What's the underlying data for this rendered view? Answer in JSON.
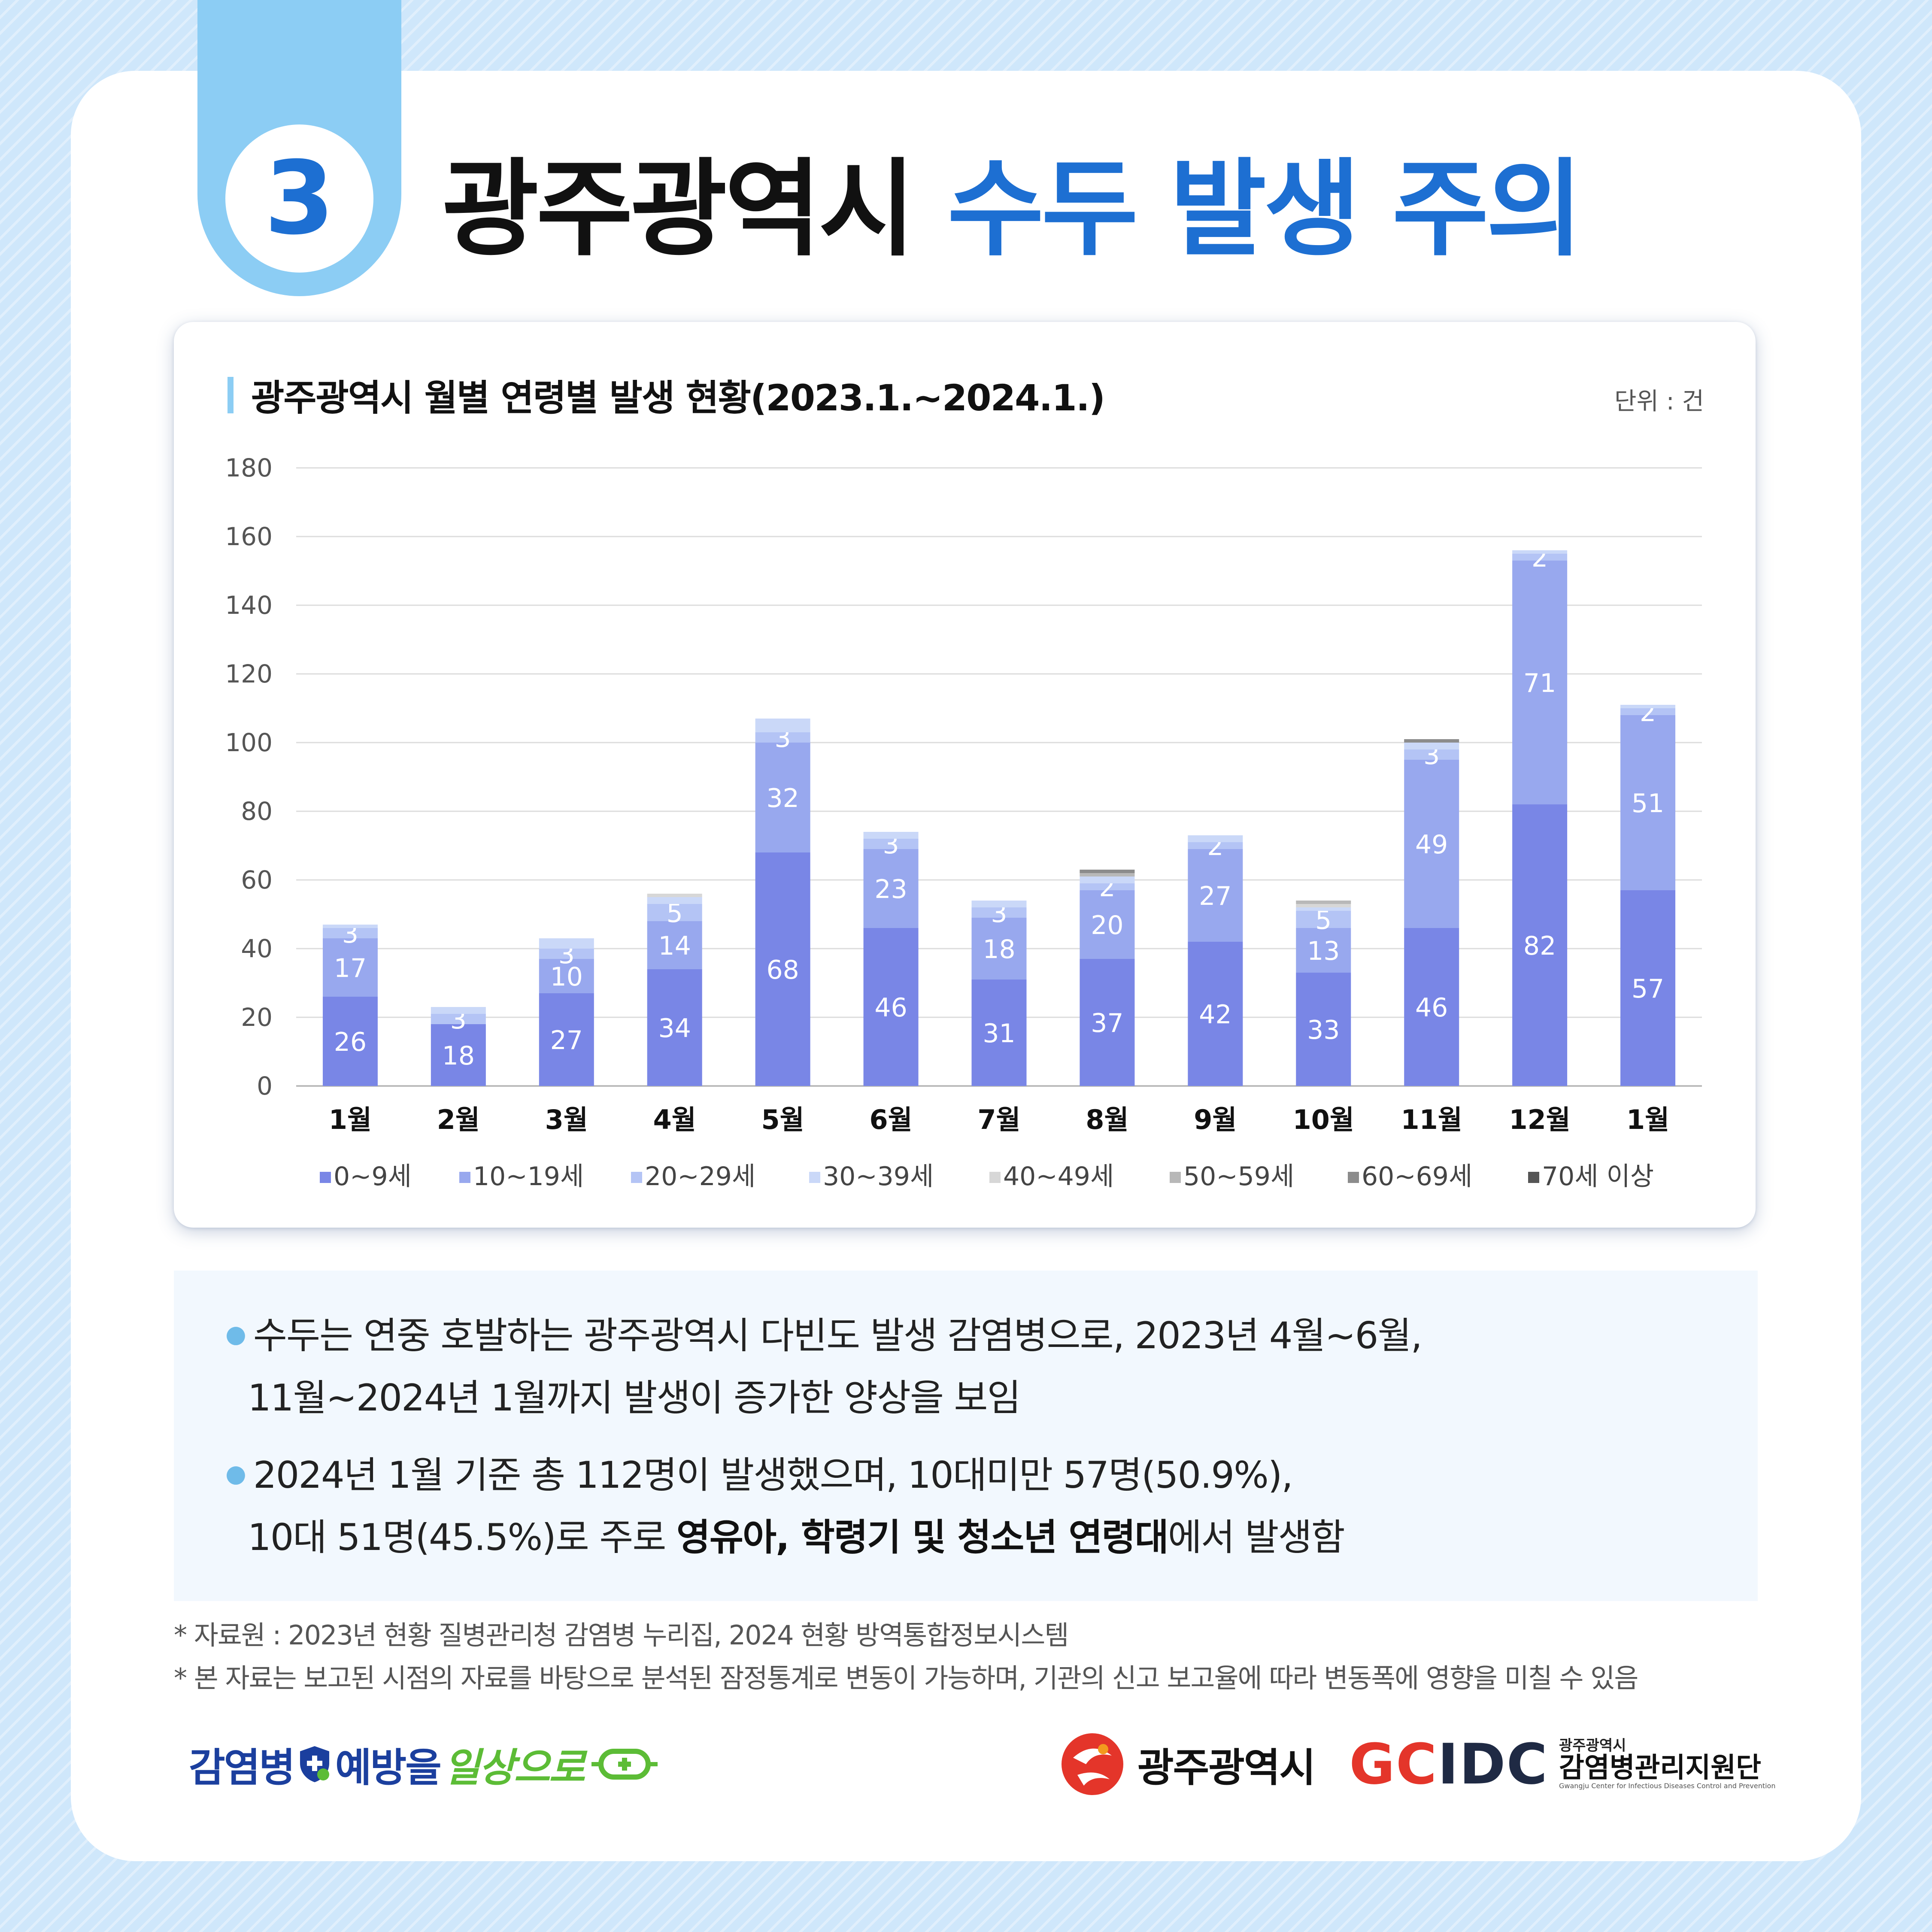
{
  "header": {
    "number": "3",
    "title_black": "광주광역시",
    "title_blue": "수두 발생 주의"
  },
  "chart_card": {
    "title": "광주광역시 월별 연령별 발생 현황(2023.1.~2024.1.)",
    "unit": "단위 : 건"
  },
  "chart_data": {
    "type": "bar",
    "stacked": true,
    "categories": [
      "1월",
      "2월",
      "3월",
      "4월",
      "5월",
      "6월",
      "7월",
      "8월",
      "9월",
      "10월",
      "11월",
      "12월",
      "1월"
    ],
    "ylim": [
      0,
      180
    ],
    "yticks": [
      0,
      20,
      40,
      60,
      80,
      100,
      120,
      140,
      160,
      180
    ],
    "grid": true,
    "legend_position": "bottom",
    "series": [
      {
        "name": "0~9세",
        "color": "#7986e6",
        "values": [
          26,
          18,
          27,
          34,
          68,
          46,
          31,
          37,
          42,
          33,
          46,
          82,
          57
        ]
      },
      {
        "name": "10~19세",
        "color": "#98a8ee",
        "values": [
          17,
          0,
          10,
          14,
          32,
          23,
          18,
          20,
          27,
          13,
          49,
          71,
          51
        ]
      },
      {
        "name": "20~29세",
        "color": "#b4c4f5",
        "values": [
          3,
          3,
          3,
          5,
          3,
          3,
          3,
          2,
          2,
          5,
          3,
          2,
          2
        ]
      },
      {
        "name": "30~39세",
        "color": "#cad8f8",
        "values": [
          1,
          2,
          3,
          2,
          4,
          2,
          2,
          2,
          2,
          1,
          2,
          1,
          1
        ]
      },
      {
        "name": "40~49세",
        "color": "#d7d7d7",
        "values": [
          0,
          0,
          0,
          1,
          0,
          0,
          0,
          0,
          0,
          1,
          0,
          0,
          0
        ]
      },
      {
        "name": "50~59세",
        "color": "#b8b8b8",
        "values": [
          0,
          0,
          0,
          0,
          0,
          0,
          0,
          1,
          0,
          1,
          0,
          0,
          0
        ]
      },
      {
        "name": "60~69세",
        "color": "#8c8c8c",
        "values": [
          0,
          0,
          0,
          0,
          0,
          0,
          0,
          1,
          0,
          0,
          1,
          0,
          0
        ]
      },
      {
        "name": "70세 이상",
        "color": "#555555",
        "values": [
          0,
          0,
          0,
          0,
          0,
          0,
          0,
          0,
          0,
          0,
          0,
          0,
          0
        ]
      }
    ],
    "labels": {
      "0~9세": [
        "26",
        "18",
        "27",
        "34",
        "68",
        "46",
        "31",
        "37",
        "42",
        "33",
        "46",
        "82",
        "57"
      ],
      "10~19세": [
        "17",
        "",
        "10",
        "14",
        "32",
        "23",
        "18",
        "20",
        "27",
        "13",
        "49",
        "71",
        "51"
      ],
      "20~29세": [
        "3",
        "3",
        "3",
        "5",
        "3",
        "3",
        "3",
        "2",
        "2",
        "5",
        "3",
        "2",
        "2"
      ]
    }
  },
  "bullets": [
    {
      "line1": "수두는 연중 호발하는 광주광역시 다빈도 발생 감염병으로, 2023년 4월~6월,",
      "line2": "11월~2024년 1월까지 발생이 증가한 양상을 보임"
    },
    {
      "line1": "2024년 1월 기준 총 112명이 발생했으며, 10대미만 57명(50.9%),",
      "line2_prefix": "10대 51명(45.5%)로 주로 ",
      "line2_bold": "영유아, 학령기 및 청소년 연령대",
      "line2_suffix": "에서 발생함"
    }
  ],
  "notes": [
    "* 자료원 : 2023년 현황 질병관리청 감염병 누리집, 2024 현황 방역통합정보시스템",
    "* 본 자료는 보고된 시점의 자료를 바탕으로 분석된 잠정통계로 변동이 가능하며, 기관의 신고 보고율에 따라 변동폭에 영향을 미칠 수 있음"
  ],
  "footer": {
    "campaign_part1": "감염병",
    "campaign_part2": "예방을",
    "campaign_part3": "일상으로",
    "city_name": "광주광역시",
    "gcidc_red": "GC",
    "gcidc_dark": "IDC",
    "cdc_small": "광주광역시",
    "cdc_main": "감염병관리지원단",
    "cdc_en": "Gwangju Center for Infectious Diseases Control and Prevention"
  }
}
